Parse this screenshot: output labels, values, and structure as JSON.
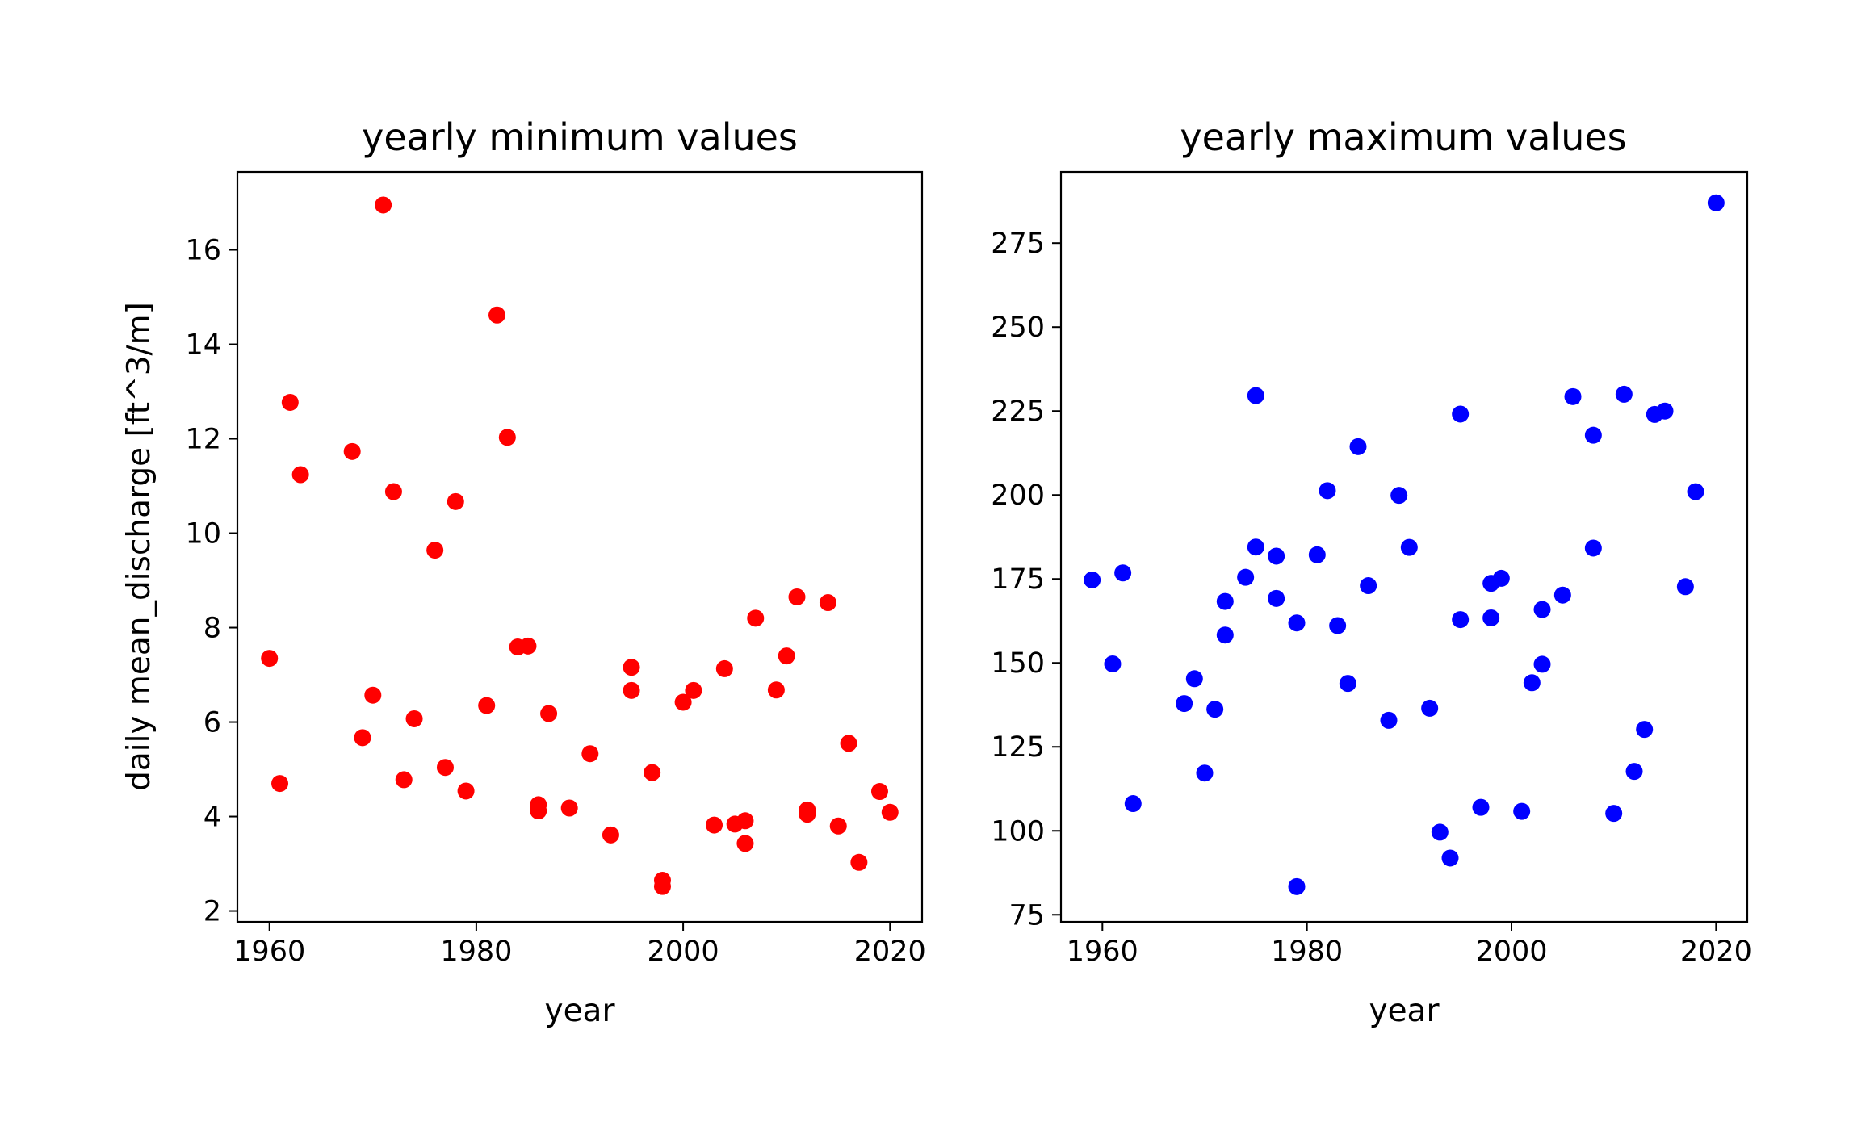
{
  "chart_data": [
    {
      "type": "scatter",
      "title": "yearly minimum values",
      "xlabel": "year",
      "ylabel": "daily mean_discharge [ft^3/m]",
      "xlim": [
        1956.9,
        2023.1
      ],
      "ylim": [
        1.77,
        17.65
      ],
      "xticks": [
        1960,
        1980,
        2000,
        2020
      ],
      "yticks": [
        2,
        4,
        6,
        8,
        10,
        12,
        14,
        16
      ],
      "color": "#ff0000",
      "grid": false,
      "x": [
        1960,
        1961,
        1962,
        1963,
        1968,
        1969,
        1970,
        1971,
        1972,
        1973,
        1974,
        1976,
        1977,
        1978,
        1979,
        1981,
        1982,
        1983,
        1984,
        1985,
        1986,
        1986,
        1987,
        1989,
        1991,
        1993,
        1995,
        1995,
        1997,
        1998,
        1998,
        2000,
        2001,
        2003,
        2004,
        2005,
        2006,
        2006,
        2007,
        2009,
        2010,
        2011,
        2012,
        2012,
        2014,
        2015,
        2016,
        2017,
        2019,
        2020
      ],
      "y": [
        7.35,
        4.7,
        12.77,
        11.24,
        11.73,
        5.67,
        6.57,
        16.95,
        10.88,
        4.78,
        6.07,
        9.64,
        5.04,
        10.67,
        4.54,
        6.35,
        14.62,
        12.03,
        7.59,
        7.61,
        4.25,
        4.12,
        6.18,
        4.18,
        5.33,
        3.61,
        7.16,
        6.67,
        4.93,
        2.65,
        2.52,
        6.42,
        6.67,
        3.82,
        7.13,
        3.84,
        3.91,
        3.43,
        8.2,
        6.68,
        7.4,
        8.65,
        4.14,
        4.05,
        8.53,
        3.8,
        5.55,
        3.03,
        4.53,
        4.09
      ]
    },
    {
      "type": "scatter",
      "title": "yearly maximum values",
      "xlabel": "year",
      "ylabel": "",
      "xlim": [
        1955.95,
        2023.05
      ],
      "ylim": [
        72.9,
        296.2
      ],
      "xticks": [
        1960,
        1980,
        2000,
        2020
      ],
      "yticks": [
        75,
        100,
        125,
        150,
        175,
        200,
        225,
        250,
        275
      ],
      "color": "#0000ff",
      "grid": false,
      "x": [
        1959,
        1961,
        1962,
        1963,
        1968,
        1969,
        1970,
        1971,
        1972,
        1972,
        1974,
        1975,
        1975,
        1977,
        1977,
        1979,
        1979,
        1981,
        1982,
        1983,
        1984,
        1985,
        1986,
        1988,
        1989,
        1990,
        1992,
        1993,
        1994,
        1995,
        1995,
        1997,
        1998,
        1998,
        1999,
        2001,
        2002,
        2003,
        2003,
        2005,
        2006,
        2008,
        2008,
        2010,
        2011,
        2012,
        2013,
        2014,
        2015,
        2017,
        2018,
        2020
      ],
      "y": [
        174.7,
        149.7,
        176.8,
        108.1,
        137.9,
        145.3,
        117.2,
        136.2,
        168.3,
        158.3,
        175.5,
        229.6,
        184.5,
        181.8,
        169.2,
        161.9,
        83.4,
        182.2,
        201.3,
        161.1,
        143.9,
        214.4,
        173.0,
        132.9,
        199.9,
        184.4,
        136.5,
        99.6,
        91.9,
        224.1,
        162.9,
        107.0,
        173.7,
        163.4,
        175.2,
        105.8,
        144.1,
        165.9,
        149.6,
        170.2,
        229.3,
        217.8,
        184.2,
        105.2,
        230.0,
        117.7,
        130.2,
        224.0,
        225.0,
        172.7,
        201.0,
        287.0
      ]
    }
  ]
}
